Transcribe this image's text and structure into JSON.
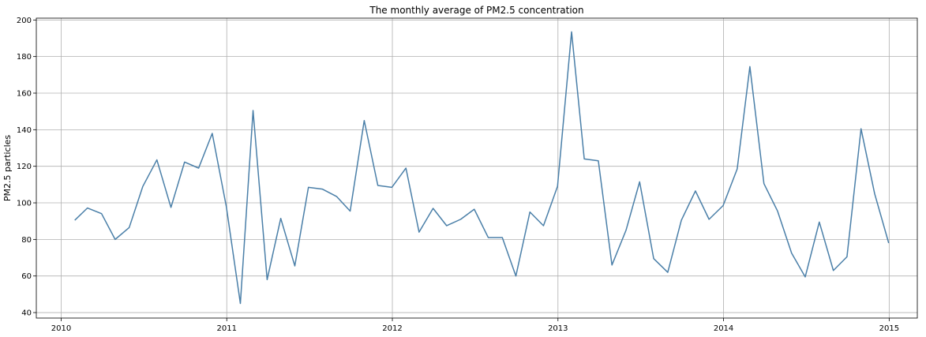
{
  "chart_data": {
    "type": "line",
    "title": "The monthly average of PM2.5 concentration",
    "xlabel": "",
    "ylabel": "PM2.5 particles",
    "xlim": [
      2009.85,
      2015.17
    ],
    "ylim": [
      37,
      201
    ],
    "x_ticks": [
      2010,
      2011,
      2012,
      2013,
      2014,
      2015
    ],
    "y_ticks": [
      40,
      60,
      80,
      100,
      120,
      140,
      160,
      180,
      200
    ],
    "grid": true,
    "line_color": "#4a7fa8",
    "series": [
      {
        "x": [
          "2010-01-31",
          "2010-02-28",
          "2010-03-31",
          "2010-04-30",
          "2010-05-31",
          "2010-06-30",
          "2010-07-31",
          "2010-08-31",
          "2010-09-30",
          "2010-10-31",
          "2010-11-30",
          "2010-12-31",
          "2011-01-31",
          "2011-02-28",
          "2011-03-31",
          "2011-04-30",
          "2011-05-31",
          "2011-06-30",
          "2011-07-31",
          "2011-08-31",
          "2011-09-30",
          "2011-10-31",
          "2011-11-30",
          "2011-12-31",
          "2012-01-31",
          "2012-02-29",
          "2012-03-31",
          "2012-04-30",
          "2012-05-31",
          "2012-06-30",
          "2012-07-31",
          "2012-08-31",
          "2012-09-30",
          "2012-10-31",
          "2012-11-30",
          "2012-12-31",
          "2013-01-31",
          "2013-02-28",
          "2013-03-31",
          "2013-04-30",
          "2013-05-31",
          "2013-06-30",
          "2013-07-31",
          "2013-08-31",
          "2013-09-30",
          "2013-10-31",
          "2013-11-30",
          "2013-12-31",
          "2014-01-31",
          "2014-02-28",
          "2014-03-31",
          "2014-04-30",
          "2014-05-31",
          "2014-06-30",
          "2014-07-31",
          "2014-08-31",
          "2014-09-30",
          "2014-10-31",
          "2014-11-30",
          "2014-12-31"
        ],
        "values": [
          90.5,
          97.2,
          94.1,
          80.0,
          86.5,
          109.0,
          123.5,
          97.5,
          122.3,
          119.0,
          138.0,
          98.0,
          45.0,
          150.5,
          58.0,
          91.5,
          65.5,
          108.5,
          107.5,
          103.5,
          95.5,
          145.0,
          109.5,
          108.5,
          119.0,
          84.0,
          97.0,
          87.5,
          91.0,
          96.5,
          81.0,
          81.0,
          60.0,
          95.0,
          87.5,
          109.0,
          193.5,
          124.0,
          123.0,
          66.0,
          85.0,
          111.5,
          69.5,
          62.0,
          90.5,
          106.5,
          91.0,
          98.5,
          118.5,
          174.5,
          110.5,
          95.5,
          72.5,
          59.5,
          89.5,
          63.0,
          70.5,
          140.5,
          105.0,
          78.0
        ]
      }
    ]
  }
}
